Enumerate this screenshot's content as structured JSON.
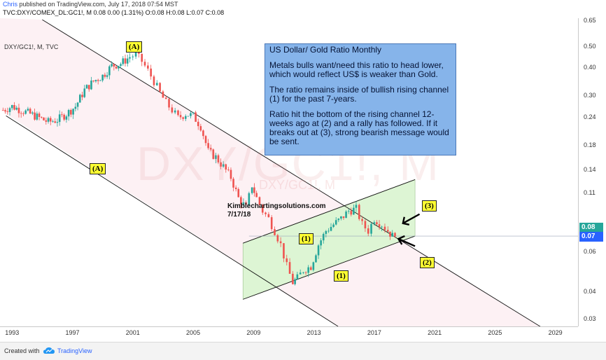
{
  "header": {
    "author": "Chris",
    "published": " published on TradingView.com, July 17, 2018 07:54 MST",
    "symbol_line": "TVC:DXY/COMEX_DL:GC1!, M  0.08 0.00 (1.31%) O:0.08 H:0.08 L:0.07 C:0.08"
  },
  "chart": {
    "indicator_label": "DXY/GC1!, M, TVC",
    "watermark": "DXY/GC1!, M",
    "watermark_small": "DXY/GC1!, M",
    "site": "Kimblechartingsolutions.com",
    "date": "7/17/18"
  },
  "note": {
    "title": "US Dollar/ Gold Ratio Monthly",
    "p1": "Metals bulls want/need this ratio to head lower, which would reflect US$ is weaker than Gold.",
    "p2": "The ratio remains inside of bullish rising channel (1) for the past 7-years.",
    "p3": "Ratio hit the bottom of the rising channel 12-weeks ago at (2) and a rally has followed. If it breaks out at (3), strong bearish message would be sent."
  },
  "labels": {
    "a_top": "(A)",
    "a_left": "(A)",
    "one_left": "(1)",
    "one_bottom": "(1)",
    "two": "(2)",
    "three": "(3)"
  },
  "price_tags": {
    "last": "0.08",
    "current": "0.07"
  },
  "colors": {
    "up": "#26a69a",
    "down": "#ef5350",
    "channel_fill": "#ddf5d4",
    "downtrend_fill": "#fdf1f4",
    "note_fill": "#86b4ea",
    "label_fill": "#ffff33",
    "tag_last": "#26a69a",
    "tag_current": "#2962ff"
  },
  "footer": {
    "created_with": "Created with",
    "brand": "TradingView",
    "logo_icon": "tradingview-cloud-icon"
  },
  "chart_data": {
    "type": "candlestick",
    "y_scale": "log",
    "y_ticks": [
      "0.65",
      "0.50",
      "0.40",
      "0.30",
      "0.24",
      "0.18",
      "0.14",
      "0.11",
      "0.06",
      "0.04",
      "0.03"
    ],
    "x_ticks": [
      "1993",
      "1997",
      "2001",
      "2005",
      "2009",
      "2013",
      "2017",
      "2021",
      "2025",
      "2029"
    ],
    "ylim": [
      0.028,
      0.67
    ],
    "xlim": [
      1992.2,
      2030.5
    ],
    "series": [
      {
        "name": "DXY/GC1!",
        "points": [
          [
            1992.4,
            0.26
          ],
          [
            1993.0,
            0.27
          ],
          [
            1993.6,
            0.26
          ],
          [
            1994.2,
            0.25
          ],
          [
            1994.8,
            0.24
          ],
          [
            1995.4,
            0.23
          ],
          [
            1996.0,
            0.235
          ],
          [
            1996.6,
            0.25
          ],
          [
            1997.2,
            0.27
          ],
          [
            1997.8,
            0.32
          ],
          [
            1998.4,
            0.35
          ],
          [
            1999.0,
            0.37
          ],
          [
            1999.6,
            0.41
          ],
          [
            2000.2,
            0.42
          ],
          [
            2000.8,
            0.45
          ],
          [
            2001.2,
            0.46
          ],
          [
            2001.6,
            0.43
          ],
          [
            2002.0,
            0.39
          ],
          [
            2002.4,
            0.35
          ],
          [
            2002.8,
            0.31
          ],
          [
            2003.2,
            0.28
          ],
          [
            2003.6,
            0.26
          ],
          [
            2004.0,
            0.24
          ],
          [
            2004.5,
            0.25
          ],
          [
            2005.0,
            0.245
          ],
          [
            2005.5,
            0.22
          ],
          [
            2006.0,
            0.17
          ],
          [
            2006.5,
            0.16
          ],
          [
            2007.0,
            0.145
          ],
          [
            2007.5,
            0.13
          ],
          [
            2008.0,
            0.105
          ],
          [
            2008.5,
            0.095
          ],
          [
            2008.9,
            0.12
          ],
          [
            2009.2,
            0.105
          ],
          [
            2009.6,
            0.092
          ],
          [
            2010.0,
            0.085
          ],
          [
            2010.4,
            0.075
          ],
          [
            2010.8,
            0.065
          ],
          [
            2011.2,
            0.052
          ],
          [
            2011.6,
            0.044
          ],
          [
            2011.9,
            0.046
          ],
          [
            2012.3,
            0.05
          ],
          [
            2012.8,
            0.052
          ],
          [
            2013.3,
            0.065
          ],
          [
            2013.8,
            0.075
          ],
          [
            2014.3,
            0.08
          ],
          [
            2014.8,
            0.085
          ],
          [
            2015.3,
            0.092
          ],
          [
            2015.8,
            0.094
          ],
          [
            2016.2,
            0.08
          ],
          [
            2016.6,
            0.075
          ],
          [
            2017.0,
            0.085
          ],
          [
            2017.5,
            0.08
          ],
          [
            2017.9,
            0.075
          ],
          [
            2018.2,
            0.071
          ],
          [
            2018.55,
            0.077
          ]
        ]
      }
    ],
    "annotations": [
      "(A)",
      "(A)",
      "(1)",
      "(1)",
      "(2)",
      "(3)"
    ]
  }
}
